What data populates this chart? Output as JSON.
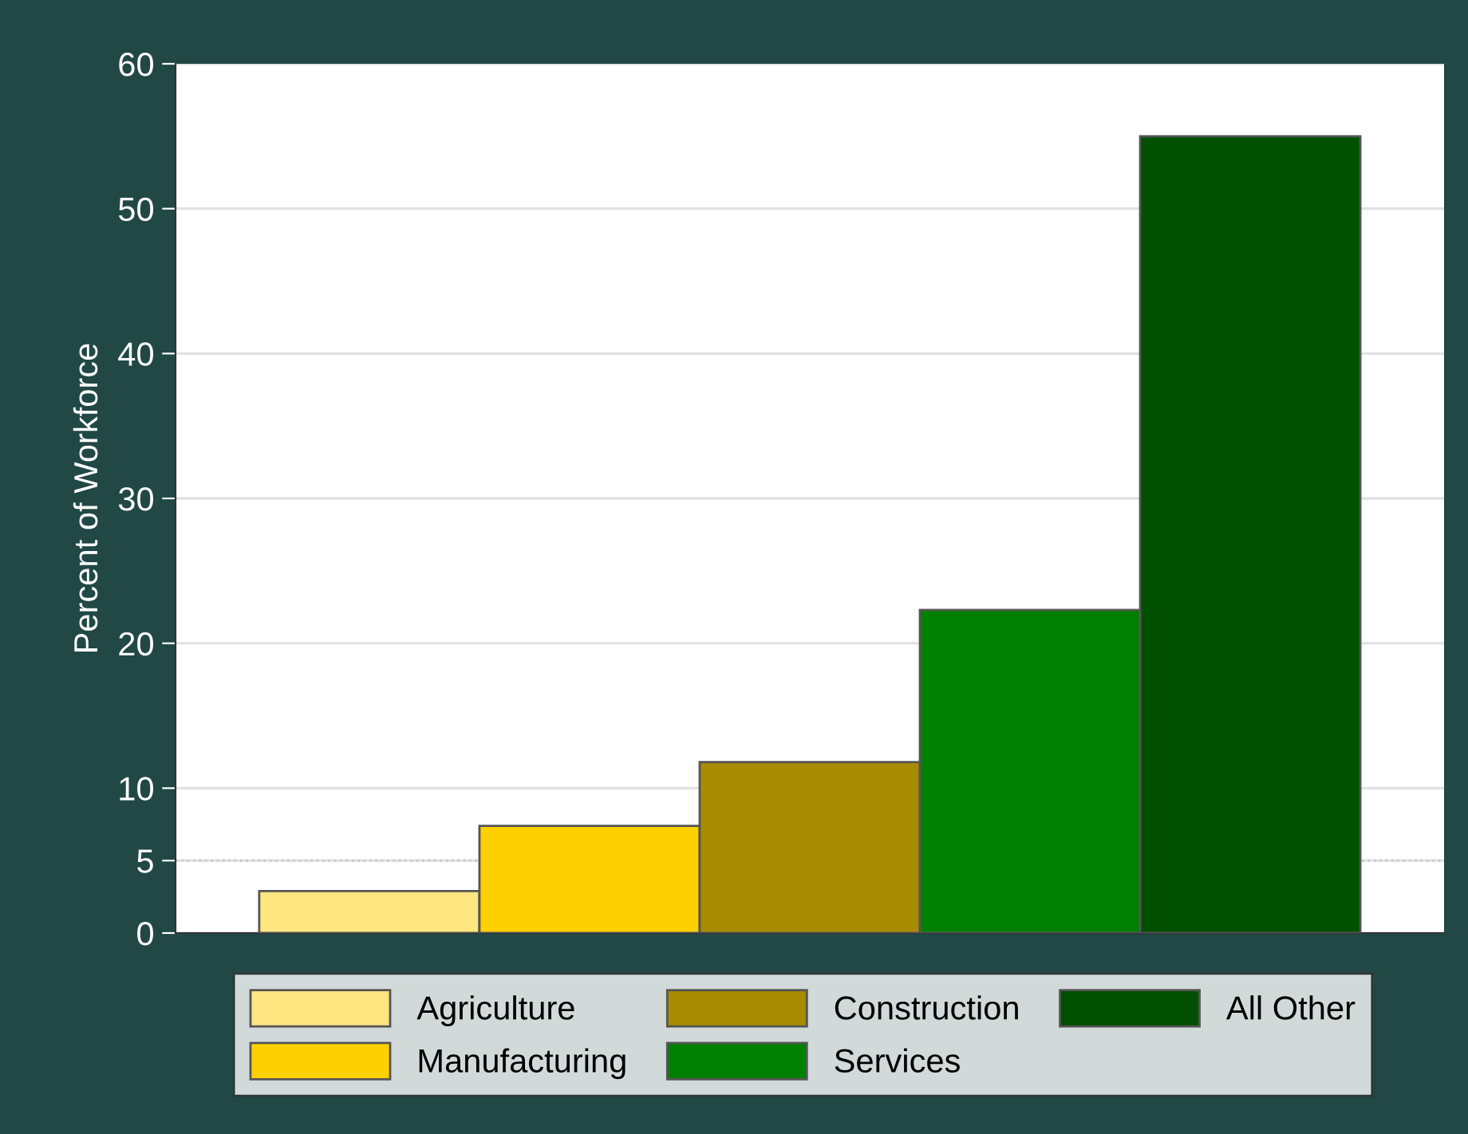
{
  "chart_data": {
    "type": "bar",
    "ylabel": "Percent of Workforce",
    "categories": [
      null,
      null,
      null,
      null,
      null
    ],
    "series": [
      {
        "name": "Agriculture",
        "color": "#ffe680",
        "values": [
          2.9,
          null,
          null,
          null,
          null
        ]
      },
      {
        "name": "Manufacturing",
        "color": "#ffd000",
        "values": [
          null,
          7.4,
          null,
          null,
          null
        ]
      },
      {
        "name": "Construction",
        "color": "#a88b00",
        "values": [
          null,
          null,
          11.8,
          null,
          null
        ]
      },
      {
        "name": "Services",
        "color": "#008000",
        "values": [
          null,
          null,
          null,
          22.3,
          null
        ]
      },
      {
        "name": "All Other",
        "color": "#005000",
        "values": [
          null,
          null,
          null,
          null,
          55.0
        ]
      }
    ],
    "ylim": [
      0,
      60
    ],
    "yticks": [
      0,
      5,
      10,
      20,
      30,
      40,
      50,
      60
    ],
    "ref_lines": [
      {
        "axis": "y",
        "value": 5,
        "color": "#c8c8c8",
        "line_style": "dotted"
      }
    ],
    "grid": "y",
    "legend": "bottom",
    "tick_labels": "y"
  }
}
